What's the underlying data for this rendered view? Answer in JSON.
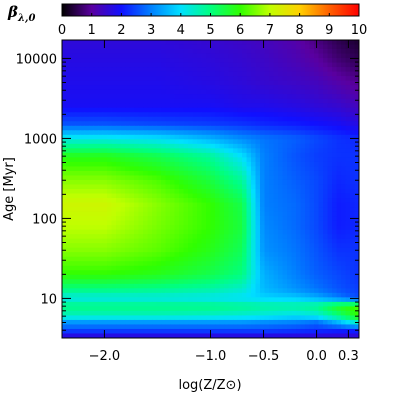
{
  "chart_data": {
    "type": "heatmap",
    "xlabel": "log(Z/Z⊙)",
    "ylabel": "Age [Myr]",
    "colorbar": {
      "label_symbol": "β",
      "label_subscript": "λ,0",
      "min": 0,
      "max": 10,
      "ticks": [
        0,
        1,
        2,
        3,
        4,
        5,
        6,
        7,
        8,
        9,
        10
      ],
      "colors": [
        "#000000",
        "#5a00a0",
        "#1010ff",
        "#0080ff",
        "#00e0ff",
        "#00ff80",
        "#30ff00",
        "#c0ff00",
        "#ffd000",
        "#ff6000",
        "#ff0000"
      ]
    },
    "xlim": [
      -2.4,
      0.4
    ],
    "x_ticks": [
      {
        "value": -2.0,
        "label": "−2.0"
      },
      {
        "value": -1.0,
        "label": "−1.0"
      },
      {
        "value": -0.5,
        "label": "−0.5"
      },
      {
        "value": 0.0,
        "label": "0.0"
      },
      {
        "value": 0.3,
        "label": "0.3"
      }
    ],
    "y_scale": "log",
    "ylim": [
      3.2,
      17000
    ],
    "y_ticks": [
      {
        "value": 10,
        "label": "10"
      },
      {
        "value": 100,
        "label": "100"
      },
      {
        "value": 1000,
        "label": "1000"
      },
      {
        "value": 10000,
        "label": "10000"
      }
    ],
    "x": [
      -2.4,
      -2.0,
      -1.5,
      -1.0,
      -0.7,
      -0.5,
      -0.2,
      0.0,
      0.2,
      0.4
    ],
    "y": [
      3.2,
      4,
      5,
      6,
      8,
      10,
      13,
      20,
      40,
      80,
      150,
      300,
      600,
      1000,
      1500,
      2500,
      5000,
      10000,
      17000
    ],
    "z": [
      [
        1.4,
        1.4,
        1.4,
        1.4,
        1.4,
        1.4,
        1.4,
        1.4,
        1.4,
        1.4
      ],
      [
        2.5,
        2.5,
        2.5,
        2.5,
        2.5,
        2.5,
        2.4,
        2.3,
        2.2,
        2.2
      ],
      [
        3.2,
        3.2,
        3.2,
        3.2,
        3.2,
        3.1,
        3.0,
        2.8,
        3.5,
        4.5
      ],
      [
        4.5,
        4.5,
        4.5,
        4.4,
        4.3,
        4.2,
        4.0,
        4.2,
        5.0,
        6.0
      ],
      [
        5.0,
        5.0,
        5.0,
        5.0,
        4.9,
        4.8,
        4.8,
        5.0,
        5.8,
        6.2
      ],
      [
        4.2,
        4.2,
        4.2,
        4.1,
        4.0,
        3.9,
        3.8,
        3.5,
        3.0,
        2.5
      ],
      [
        5.0,
        5.0,
        4.9,
        4.7,
        4.4,
        3.6,
        3.2,
        2.9,
        2.6,
        2.4
      ],
      [
        6.0,
        6.0,
        5.8,
        5.4,
        5.0,
        3.5,
        3.0,
        2.7,
        2.5,
        2.3
      ],
      [
        6.6,
        6.6,
        6.3,
        5.8,
        5.3,
        3.2,
        2.9,
        2.6,
        2.3,
        2.3
      ],
      [
        7.0,
        7.0,
        6.5,
        6.0,
        5.5,
        3.1,
        2.8,
        2.5,
        2.1,
        2.2
      ],
      [
        7.2,
        7.2,
        6.6,
        6.0,
        5.4,
        3.0,
        2.8,
        2.5,
        2.1,
        2.2
      ],
      [
        6.6,
        6.6,
        6.2,
        5.5,
        4.8,
        3.0,
        2.7,
        2.5,
        2.2,
        2.3
      ],
      [
        5.8,
        5.8,
        5.4,
        4.8,
        4.0,
        3.0,
        2.6,
        2.4,
        2.3,
        2.3
      ],
      [
        4.2,
        4.2,
        4.0,
        3.5,
        3.1,
        2.9,
        2.7,
        2.5,
        2.3,
        2.2
      ],
      [
        2.6,
        2.6,
        2.5,
        2.4,
        2.3,
        2.2,
        2.1,
        2.0,
        1.9,
        1.7
      ],
      [
        1.9,
        1.9,
        1.9,
        1.9,
        1.8,
        1.8,
        1.7,
        1.6,
        1.5,
        1.3
      ],
      [
        1.8,
        1.8,
        1.8,
        1.7,
        1.6,
        1.5,
        1.4,
        1.3,
        1.1,
        0.9
      ],
      [
        1.7,
        1.7,
        1.7,
        1.6,
        1.5,
        1.4,
        1.2,
        1.0,
        0.7,
        0.5
      ],
      [
        1.6,
        1.6,
        1.6,
        1.5,
        1.4,
        1.3,
        1.1,
        0.8,
        0.5,
        0.3
      ]
    ]
  }
}
